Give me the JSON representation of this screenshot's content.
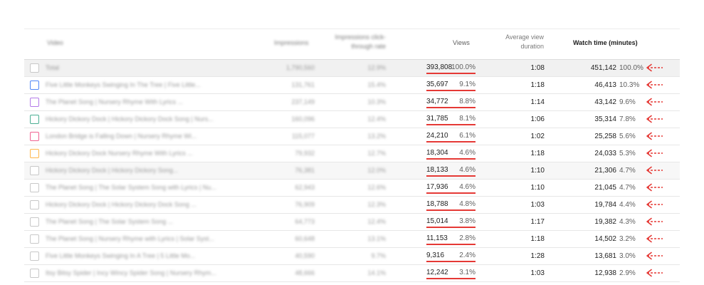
{
  "header": {
    "video": "Video",
    "impressions": "Impressions",
    "ctr_line1": "Impressions click-",
    "ctr_line2": "through rate",
    "views": "Views",
    "avd_line1": "Average view",
    "avd_line2": "duration",
    "watch_time": "Watch time (minutes)"
  },
  "colors": {
    "accent_red": "#e53935"
  },
  "rows": [
    {
      "title": "Total",
      "impressions": "1,790,560",
      "ctr": "12.9%",
      "views": "393,808",
      "views_pct": "100.0%",
      "avd": "1:08",
      "watch": "451,142",
      "watch_pct": "100.0%",
      "checkbox_color": "#c8c8c8"
    },
    {
      "title": "Five Little Monkeys Swinging In The Tree | Five Little...",
      "impressions": "131,761",
      "ctr": "15.4%",
      "views": "35,697",
      "views_pct": "9.1%",
      "avd": "1:18",
      "watch": "46,413",
      "watch_pct": "10.3%",
      "checkbox_color": "#4f86f7"
    },
    {
      "title": "The Planet Song | Nursery Rhyme With Lyrics ...",
      "impressions": "237,149",
      "ctr": "10.3%",
      "views": "34,772",
      "views_pct": "8.8%",
      "avd": "1:14",
      "watch": "43,142",
      "watch_pct": "9.6%",
      "checkbox_color": "#b37ae8"
    },
    {
      "title": "Hickory Dickory Dock | Hickory Dickory Dock Song | Nurs...",
      "impressions": "160,096",
      "ctr": "12.4%",
      "views": "31,785",
      "views_pct": "8.1%",
      "avd": "1:06",
      "watch": "35,314",
      "watch_pct": "7.8%",
      "checkbox_color": "#4caf93"
    },
    {
      "title": "London Bridge is Falling Down | Nursery Rhyme Wi...",
      "impressions": "115,077",
      "ctr": "13.2%",
      "views": "24,210",
      "views_pct": "6.1%",
      "avd": "1:02",
      "watch": "25,258",
      "watch_pct": "5.6%",
      "checkbox_color": "#f06292"
    },
    {
      "title": "Hickory Dickory Dock Nursery Rhyme With Lyrics ...",
      "impressions": "79,932",
      "ctr": "12.7%",
      "views": "18,304",
      "views_pct": "4.6%",
      "avd": "1:18",
      "watch": "24,033",
      "watch_pct": "5.3%",
      "checkbox_color": "#ffb74d"
    },
    {
      "title": "Hickory Dickory Dock | Hickory Dickory Song...",
      "impressions": "76,381",
      "ctr": "12.0%",
      "views": "18,133",
      "views_pct": "4.6%",
      "avd": "1:10",
      "watch": "21,306",
      "watch_pct": "4.7%",
      "checkbox_color": "#c8c8c8"
    },
    {
      "title": "The Planet Song | The Solar System Song with Lyrics | Nu...",
      "impressions": "62,943",
      "ctr": "12.6%",
      "views": "17,936",
      "views_pct": "4.6%",
      "avd": "1:10",
      "watch": "21,045",
      "watch_pct": "4.7%",
      "checkbox_color": "#c8c8c8"
    },
    {
      "title": "Hickory Dickory Dock | Hickory Dickory Dock Song ...",
      "impressions": "76,909",
      "ctr": "12.3%",
      "views": "18,788",
      "views_pct": "4.8%",
      "avd": "1:03",
      "watch": "19,784",
      "watch_pct": "4.4%",
      "checkbox_color": "#c8c8c8"
    },
    {
      "title": "The Planet Song | The Solar System Song ...",
      "impressions": "64,773",
      "ctr": "12.4%",
      "views": "15,014",
      "views_pct": "3.8%",
      "avd": "1:17",
      "watch": "19,382",
      "watch_pct": "4.3%",
      "checkbox_color": "#c8c8c8"
    },
    {
      "title": "The Planet Song | Nursery Rhyme with Lyrics | Solar Syst...",
      "impressions": "60,648",
      "ctr": "13.1%",
      "views": "11,153",
      "views_pct": "2.8%",
      "avd": "1:18",
      "watch": "14,502",
      "watch_pct": "3.2%",
      "checkbox_color": "#c8c8c8"
    },
    {
      "title": "Five Little Monkeys Swinging In A Tree | 5 Little Mo...",
      "impressions": "40,590",
      "ctr": "9.7%",
      "views": "9,316",
      "views_pct": "2.4%",
      "avd": "1:28",
      "watch": "13,681",
      "watch_pct": "3.0%",
      "checkbox_color": "#c8c8c8"
    },
    {
      "title": "Itsy Bitsy Spider | Incy Wincy Spider Song | Nursery Rhym...",
      "impressions": "48,666",
      "ctr": "14.1%",
      "views": "12,242",
      "views_pct": "3.1%",
      "avd": "1:03",
      "watch": "12,938",
      "watch_pct": "2.9%",
      "checkbox_color": "#c8c8c8"
    }
  ]
}
